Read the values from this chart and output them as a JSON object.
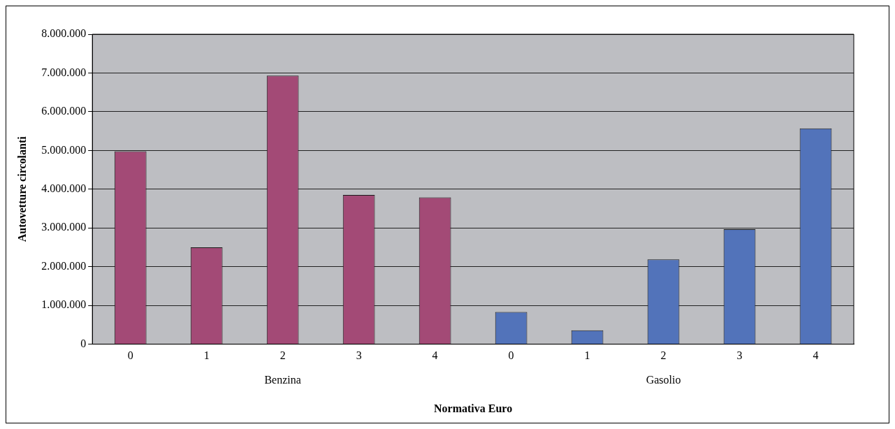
{
  "chart_data": {
    "type": "bar",
    "xlabel": "Normativa Euro",
    "ylabel": "Autovetture circolanti",
    "categories": [
      "0",
      "1",
      "2",
      "3",
      "4",
      "0",
      "1",
      "2",
      "3",
      "4"
    ],
    "series": [
      {
        "name": "Benzina",
        "color": "#a34a76",
        "values": [
          4980000,
          2500000,
          6930000,
          3850000,
          3790000,
          null,
          null,
          null,
          null,
          null
        ]
      },
      {
        "name": "Gasolio",
        "color": "#5273ba",
        "values": [
          null,
          null,
          null,
          null,
          null,
          830000,
          360000,
          2190000,
          2970000,
          5570000
        ]
      }
    ],
    "ylim": [
      0,
      8000000
    ],
    "yticks": [
      {
        "value": 0,
        "label": "0"
      },
      {
        "value": 1000000,
        "label": "1.000.000"
      },
      {
        "value": 2000000,
        "label": "2.000.000"
      },
      {
        "value": 3000000,
        "label": "3.000.000"
      },
      {
        "value": 4000000,
        "label": "4.000.000"
      },
      {
        "value": 5000000,
        "label": "5.000.000"
      },
      {
        "value": 6000000,
        "label": "6.000.000"
      },
      {
        "value": 7000000,
        "label": "7.000.000"
      },
      {
        "value": 8000000,
        "label": "8.000.000"
      }
    ],
    "grid": "y",
    "legend": false
  }
}
